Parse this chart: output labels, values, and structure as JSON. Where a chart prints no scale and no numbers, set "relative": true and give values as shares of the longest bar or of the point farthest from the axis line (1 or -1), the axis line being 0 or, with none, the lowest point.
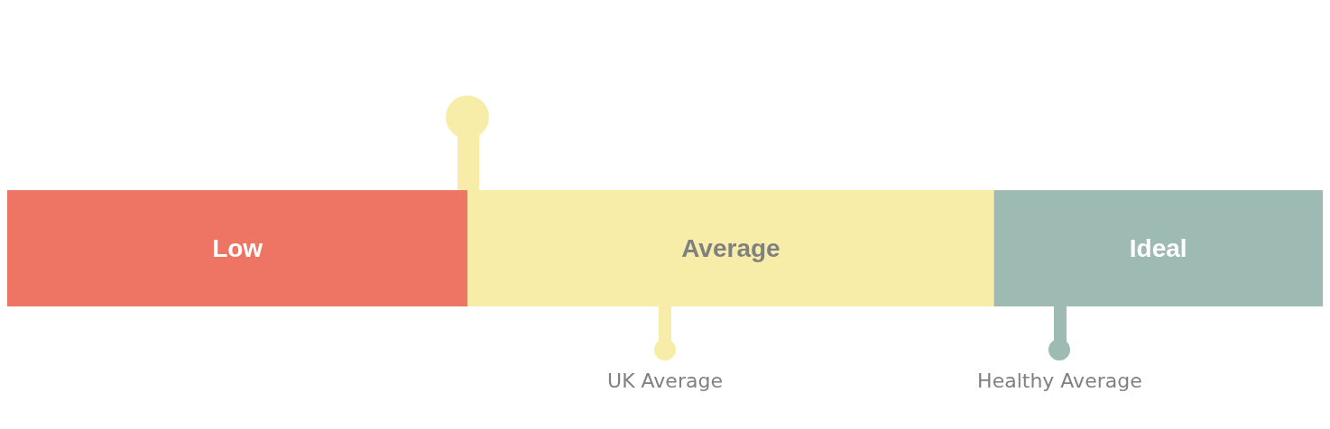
{
  "chart_data": {
    "type": "bar",
    "orientation": "horizontal",
    "stacked": true,
    "relative": true,
    "categories": [
      null
    ],
    "series": [
      {
        "name": "Low",
        "color": "#ee7563",
        "values": [
          0.35
        ]
      },
      {
        "name": "Average",
        "color": "#f8eda8",
        "values": [
          0.4
        ]
      },
      {
        "name": "Ideal",
        "color": "#9dbbb2",
        "values": [
          0.25
        ]
      }
    ],
    "ref_lines": [
      {
        "axis": "x",
        "value": 0.35,
        "color": "#f8eda8"
      },
      {
        "axis": "x",
        "value": 0.5,
        "label": "UK Average",
        "color": "#f8eda8"
      },
      {
        "axis": "x",
        "value": 0.8,
        "label": "Healthy Average",
        "color": "#9dbbb2"
      }
    ],
    "legend": false
  }
}
